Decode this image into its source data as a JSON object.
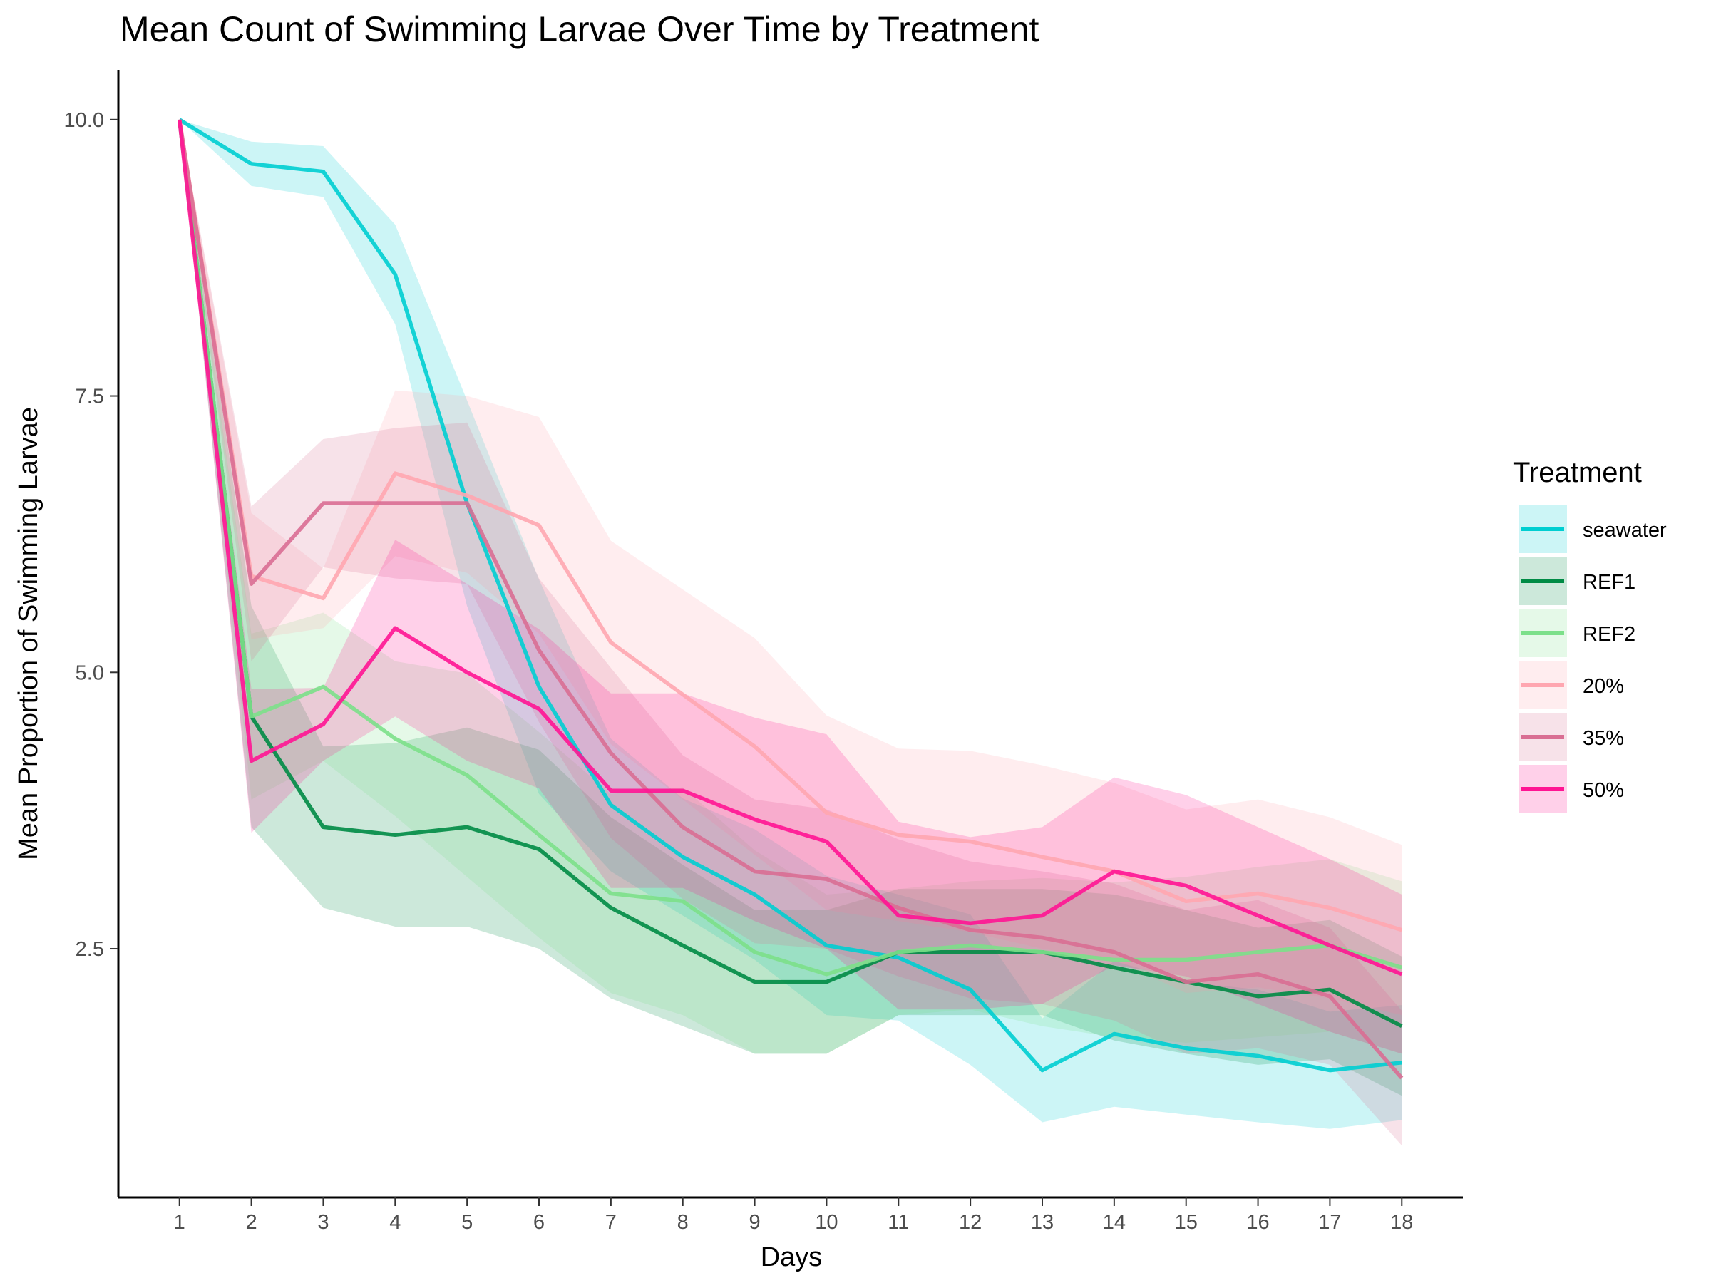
{
  "chart_data": {
    "type": "line",
    "title": "Mean Count of Swimming Larvae Over Time by Treatment",
    "xlabel": "Days",
    "ylabel": "Mean Proportion of Swimming Larvae",
    "x": [
      1,
      2,
      3,
      4,
      5,
      6,
      7,
      8,
      9,
      10,
      11,
      12,
      13,
      14,
      15,
      16,
      17,
      18
    ],
    "xlim": [
      0.15,
      18.85
    ],
    "ylim": [
      0.25,
      10.45
    ],
    "y_ticks": [
      2.5,
      5.0,
      7.5,
      10.0
    ],
    "y_tick_labels": [
      "2.5",
      "5.0",
      "7.5",
      "10.0"
    ],
    "x_tick_labels": [
      "1",
      "2",
      "3",
      "4",
      "5",
      "6",
      "7",
      "8",
      "9",
      "10",
      "11",
      "12",
      "13",
      "14",
      "15",
      "16",
      "17",
      "18"
    ],
    "grid": false,
    "legend": {
      "title": "Treatment",
      "position": "right"
    },
    "series": [
      {
        "name": "seawater",
        "color": "#00CED1",
        "values": [
          10.0,
          9.6,
          9.53,
          8.6,
          6.53,
          4.87,
          3.8,
          3.33,
          2.99,
          2.53,
          2.42,
          2.13,
          1.4,
          1.73,
          1.6,
          1.53,
          1.4,
          1.47
        ],
        "lower": [
          10.0,
          9.4,
          9.3,
          8.15,
          5.6,
          3.9,
          3.2,
          2.8,
          2.4,
          1.9,
          1.85,
          1.45,
          0.93,
          1.07,
          1.0,
          0.93,
          0.87,
          0.95
        ],
        "upper": [
          10.0,
          9.8,
          9.76,
          9.05,
          7.46,
          5.84,
          4.4,
          3.86,
          3.58,
          3.16,
          2.99,
          2.81,
          1.87,
          2.39,
          2.2,
          2.13,
          1.93,
          1.99
        ]
      },
      {
        "name": "REF1",
        "color": "#008B45",
        "values": [
          10.0,
          4.6,
          3.6,
          3.53,
          3.6,
          3.4,
          2.87,
          2.53,
          2.2,
          2.2,
          2.47,
          2.47,
          2.47,
          2.33,
          2.2,
          2.07,
          2.13,
          1.8
        ],
        "lower": [
          10.0,
          3.6,
          2.87,
          2.7,
          2.7,
          2.5,
          2.05,
          1.8,
          1.55,
          1.55,
          1.9,
          1.9,
          1.9,
          1.67,
          1.55,
          1.45,
          1.5,
          1.17
        ],
        "upper": [
          10.0,
          5.6,
          4.33,
          4.36,
          4.5,
          4.3,
          3.69,
          3.26,
          2.85,
          2.85,
          3.04,
          3.04,
          3.04,
          2.99,
          2.85,
          2.69,
          2.76,
          2.43
        ]
      },
      {
        "name": "REF2",
        "color": "#7CE08A",
        "values": [
          10.0,
          4.6,
          4.87,
          4.4,
          4.07,
          3.53,
          3.0,
          2.93,
          2.47,
          2.27,
          2.47,
          2.53,
          2.47,
          2.4,
          2.4,
          2.47,
          2.53,
          2.33
        ],
        "lower": [
          10.0,
          3.85,
          4.2,
          3.7,
          3.15,
          2.6,
          2.1,
          1.9,
          1.55,
          1.55,
          1.9,
          1.95,
          1.8,
          1.7,
          1.65,
          1.7,
          1.75,
          1.55
        ],
        "upper": [
          10.0,
          5.35,
          5.54,
          5.1,
          4.99,
          4.46,
          3.9,
          3.96,
          3.39,
          2.99,
          3.04,
          3.11,
          3.14,
          3.1,
          3.15,
          3.24,
          3.31,
          3.11
        ]
      },
      {
        "name": "20%",
        "color": "#FFA6B0",
        "values": [
          10.0,
          5.87,
          5.67,
          6.8,
          6.6,
          6.33,
          5.27,
          4.8,
          4.33,
          3.73,
          3.53,
          3.47,
          3.33,
          3.2,
          2.93,
          3.0,
          2.87,
          2.67
        ],
        "lower": [
          10.0,
          5.3,
          5.4,
          6.05,
          5.9,
          5.35,
          4.35,
          3.85,
          3.35,
          2.85,
          2.75,
          2.65,
          2.5,
          2.4,
          2.1,
          2.15,
          2.05,
          1.9
        ],
        "upper": [
          10.0,
          6.44,
          5.94,
          7.55,
          7.5,
          7.31,
          6.19,
          5.75,
          5.31,
          4.61,
          4.31,
          4.29,
          4.16,
          4.0,
          3.76,
          3.85,
          3.69,
          3.44
        ]
      },
      {
        "name": "35%",
        "color": "#D96E93",
        "values": [
          10.0,
          5.8,
          6.53,
          6.53,
          6.53,
          5.2,
          4.27,
          3.6,
          3.2,
          3.13,
          2.87,
          2.67,
          2.6,
          2.47,
          2.2,
          2.27,
          2.07,
          1.33
        ],
        "lower": [
          10.0,
          5.1,
          5.95,
          5.85,
          5.8,
          4.55,
          3.5,
          2.95,
          2.55,
          2.5,
          2.25,
          2.05,
          2.0,
          1.85,
          1.55,
          1.6,
          1.45,
          0.72
        ],
        "upper": [
          10.0,
          6.5,
          7.11,
          7.21,
          7.26,
          5.85,
          5.04,
          4.25,
          3.85,
          3.76,
          3.49,
          3.29,
          3.2,
          3.09,
          2.85,
          2.94,
          2.69,
          1.94
        ]
      },
      {
        "name": "50%",
        "color": "#FF1493",
        "values": [
          10.0,
          4.2,
          4.53,
          5.4,
          5.0,
          4.67,
          3.93,
          3.93,
          3.67,
          3.47,
          2.8,
          2.73,
          2.8,
          3.2,
          3.07,
          2.8,
          2.53,
          2.27
        ],
        "lower": [
          10.0,
          3.55,
          4.2,
          4.6,
          4.2,
          3.95,
          3.05,
          3.05,
          2.75,
          2.5,
          1.95,
          1.95,
          2.0,
          2.35,
          2.25,
          2.0,
          1.75,
          1.55
        ],
        "upper": [
          10.0,
          4.85,
          4.86,
          6.2,
          5.8,
          5.39,
          4.81,
          4.81,
          4.59,
          4.44,
          3.65,
          3.51,
          3.6,
          4.05,
          3.89,
          3.6,
          3.31,
          2.99
        ]
      }
    ]
  }
}
